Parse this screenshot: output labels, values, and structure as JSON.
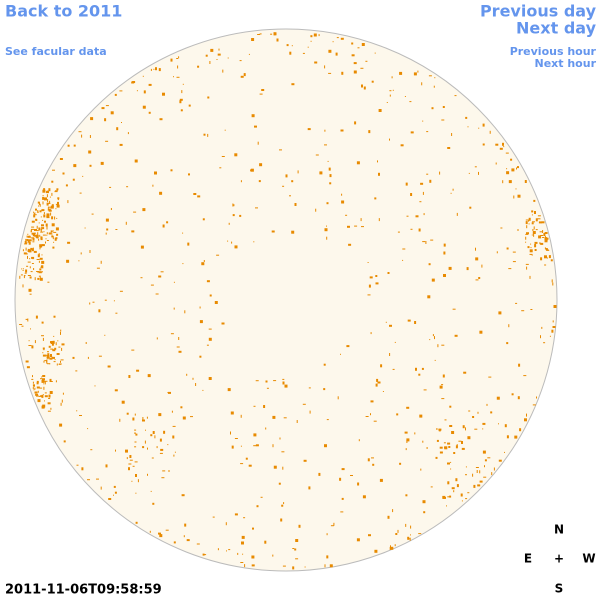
{
  "header": {
    "back": "Back to 2011",
    "facular": "See facular data",
    "previous_day": "Previous day",
    "next_day": "Next day",
    "previous_hour": "Previous hour",
    "next_hour": "Next hour"
  },
  "timestamp": "2011-11-06T09:58:59",
  "compass": {
    "north": "N",
    "east": "E",
    "center": "+",
    "west": "W",
    "south": "S"
  }
}
